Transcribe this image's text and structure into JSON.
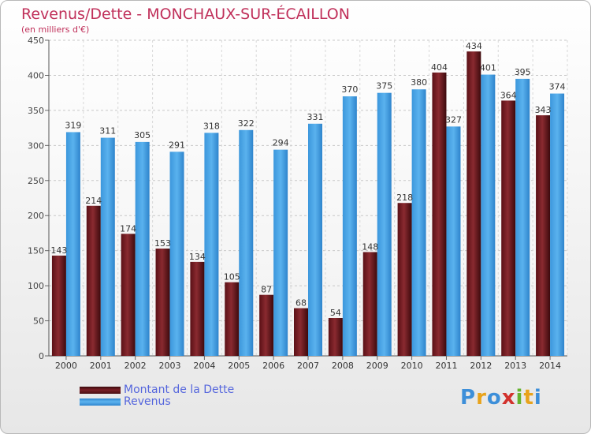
{
  "header": {
    "title": "Revenus/Dette - MONCHAUX-SUR-ÉCAILLON",
    "subtitle": "(en milliers d'€)"
  },
  "colors": {
    "title": "#c0305a",
    "dette": "#7b1f25",
    "revenus": "#4ea6e6",
    "legend_text": "#5566dd"
  },
  "chart_data": {
    "type": "bar",
    "categories": [
      "2000",
      "2001",
      "2002",
      "2003",
      "2004",
      "2005",
      "2006",
      "2007",
      "2008",
      "2009",
      "2010",
      "2011",
      "2012",
      "2013",
      "2014"
    ],
    "series": [
      {
        "name": "Montant de la Dette",
        "values": [
          143,
          214,
          174,
          153,
          134,
          105,
          87,
          68,
          54,
          148,
          218,
          404,
          434,
          364,
          343
        ]
      },
      {
        "name": "Revenus",
        "values": [
          319,
          311,
          305,
          291,
          318,
          322,
          294,
          331,
          370,
          375,
          380,
          327,
          401,
          395,
          374
        ]
      }
    ],
    "title": "Revenus/Dette - MONCHAUX-SUR-ÉCAILLON",
    "ylim": [
      0,
      450
    ],
    "yticks": [
      0,
      50,
      100,
      150,
      200,
      250,
      300,
      350,
      400,
      450
    ],
    "grid": true,
    "legend_position": "bottom-left"
  },
  "legend": {
    "items": [
      {
        "label": "Montant de la Dette"
      },
      {
        "label": "Revenus"
      }
    ]
  },
  "brand": {
    "letters": [
      "P",
      "r",
      "o",
      "x",
      "i",
      "t",
      "i"
    ],
    "colors": [
      "#3d8fd9",
      "#e8a31b",
      "#3d8fd9",
      "#d2322d",
      "#65b32e",
      "#e8a31b",
      "#3d8fd9"
    ]
  }
}
